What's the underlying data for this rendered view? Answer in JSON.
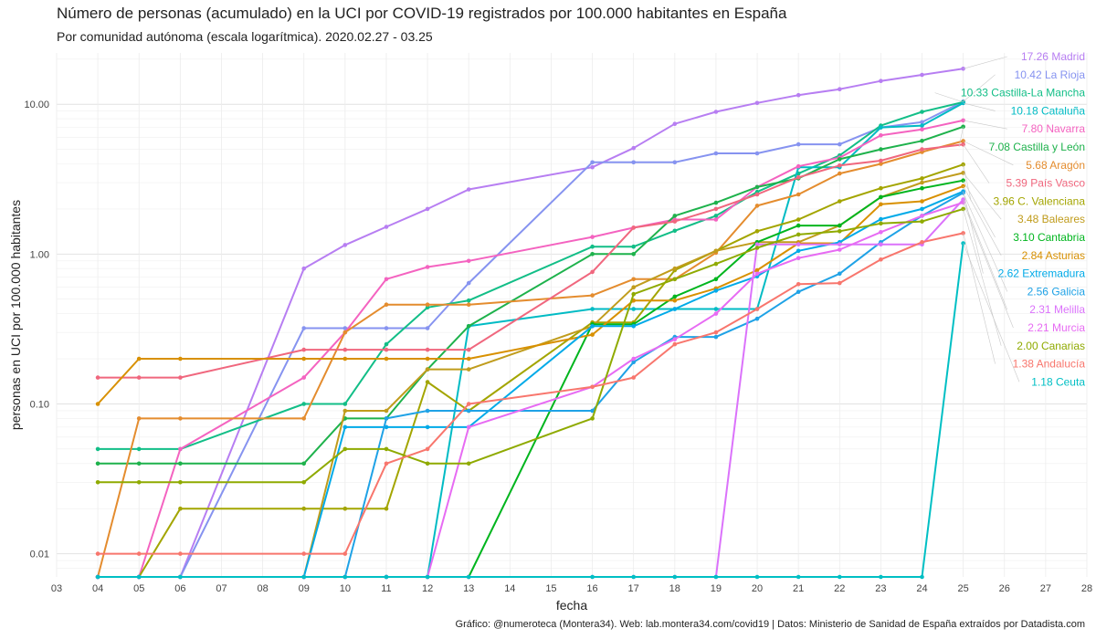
{
  "title": "Número de personas (acumulado) en la UCI por COVID-19 registrados por 100.000 habitantes en España",
  "subtitle": "Por comunidad autónoma (escala logarítmica). 2020.02.27 - 03.25",
  "caption": "Gráfico: @numeroteca (Montera34). Web: lab.montera34.com/covid19 | Datos: Ministerio de Sanidad de España extraídos por Datadista.com",
  "chart_data": {
    "type": "line",
    "title": "Número de personas (acumulado) en la UCI por COVID-19 registrados por 100.000 habitantes en España",
    "subtitle": "Por comunidad autónoma (escala logarítmica). 2020.02.27 - 03.25",
    "xlabel": "fecha",
    "ylabel": "personas en UCI por 100.000 habitantes",
    "y_scale": "log",
    "ylim": [
      0.007,
      22
    ],
    "xlim": [
      3,
      28
    ],
    "grid": true,
    "legend": "none (labels at line ends, right)",
    "x_ticks": [
      "03",
      "04",
      "05",
      "06",
      "07",
      "08",
      "09",
      "10",
      "11",
      "12",
      "13",
      "14",
      "15",
      "16",
      "17",
      "18",
      "19",
      "20",
      "21",
      "22",
      "23",
      "24",
      "25",
      "26",
      "27",
      "28"
    ],
    "y_ticks": [
      {
        "value": 0.01,
        "label": "0.01"
      },
      {
        "value": 0.1,
        "label": "0.10"
      },
      {
        "value": 1,
        "label": "1.00"
      },
      {
        "value": 10,
        "label": "10.00"
      }
    ],
    "x": [
      4,
      5,
      6,
      9,
      10,
      11,
      12,
      13,
      16,
      17,
      18,
      19,
      20,
      21,
      22,
      23,
      24,
      25
    ],
    "series": [
      {
        "name": "Madrid",
        "label": "17.26 Madrid",
        "color": "#B77EF2",
        "values": [
          0,
          0,
          0,
          0.8,
          1.15,
          1.52,
          2.0,
          2.7,
          3.8,
          5.1,
          7.4,
          8.9,
          10.2,
          11.5,
          12.6,
          14.3,
          15.7,
          17.26
        ]
      },
      {
        "name": "La Rioja",
        "label": "10.42 La Rioja",
        "color": "#8693F0",
        "values": [
          0,
          0,
          0,
          0.32,
          0.32,
          0.32,
          0.32,
          0.64,
          4.1,
          4.1,
          4.1,
          4.7,
          4.7,
          5.4,
          5.4,
          7.0,
          7.6,
          10.42
        ]
      },
      {
        "name": "Castilla-La Mancha",
        "label": "10.33 Castilla-La Mancha",
        "color": "#12BE87",
        "values": [
          0.05,
          0.05,
          0.05,
          0.1,
          0.1,
          0.25,
          0.44,
          0.49,
          1.12,
          1.12,
          1.43,
          1.8,
          2.6,
          3.45,
          4.55,
          7.2,
          8.9,
          10.33
        ]
      },
      {
        "name": "Cataluña",
        "label": "10.18 Cataluña",
        "color": "#00BBC4",
        "values": [
          0,
          0,
          0,
          0,
          0,
          0,
          0,
          0.33,
          0.43,
          0.43,
          0.43,
          0.43,
          0.43,
          3.8,
          3.8,
          7.0,
          7.2,
          10.18
        ]
      },
      {
        "name": "Navarra",
        "label": "7.80 Navarra",
        "color": "#F463C0",
        "values": [
          0,
          0,
          0.05,
          0.15,
          0.3,
          0.68,
          0.82,
          0.9,
          1.3,
          1.5,
          1.7,
          1.7,
          2.8,
          3.85,
          4.4,
          6.2,
          6.8,
          7.8
        ]
      },
      {
        "name": "Castilla y León",
        "label": "7.08 Castilla y León",
        "color": "#1EB24C",
        "values": [
          0.04,
          0.04,
          0.04,
          0.04,
          0.08,
          0.08,
          0.17,
          0.33,
          1.0,
          1.0,
          1.8,
          2.2,
          2.8,
          3.2,
          4.3,
          5.0,
          5.7,
          7.08
        ]
      },
      {
        "name": "Aragón",
        "label": "5.68 Aragón",
        "color": "#E48C2E",
        "values": [
          0,
          0.08,
          0.08,
          0.08,
          0.3,
          0.46,
          0.46,
          0.46,
          0.53,
          0.68,
          0.68,
          1.02,
          2.1,
          2.5,
          3.45,
          4.0,
          4.8,
          5.68
        ]
      },
      {
        "name": "País Vasco",
        "label": "5.39 País Vasco",
        "color": "#F0677E",
        "values": [
          0.15,
          0.15,
          0.15,
          0.23,
          0.23,
          0.23,
          0.23,
          0.23,
          0.76,
          1.5,
          1.65,
          2.0,
          2.5,
          3.25,
          3.9,
          4.2,
          5.0,
          5.39
        ]
      },
      {
        "name": "C. Valenciana",
        "label": "3.96 C. Valenciana",
        "color": "#A3A500",
        "values": [
          0,
          0,
          0.02,
          0.02,
          0.02,
          0.02,
          0.14,
          0.09,
          0.35,
          0.35,
          0.78,
          1.05,
          1.42,
          1.7,
          2.25,
          2.75,
          3.2,
          3.96
        ]
      },
      {
        "name": "Baleares",
        "label": "3.48 Baleares",
        "color": "#C09C1C",
        "values": [
          0,
          0,
          0,
          0,
          0.09,
          0.09,
          0.17,
          0.17,
          0.33,
          0.6,
          0.8,
          1.05,
          1.2,
          1.2,
          1.55,
          2.4,
          3.0,
          3.48
        ]
      },
      {
        "name": "Cantabria",
        "label": "3.10 Cantabria",
        "color": "#00B51E",
        "values": [
          0,
          0,
          0,
          0,
          0,
          0,
          0,
          0,
          0.34,
          0.34,
          0.52,
          0.68,
          1.2,
          1.55,
          1.55,
          2.4,
          2.75,
          3.1
        ]
      },
      {
        "name": "Asturias",
        "label": "2.84 Asturias",
        "color": "#D89000",
        "values": [
          0.1,
          0.2,
          0.2,
          0.2,
          0.2,
          0.2,
          0.2,
          0.2,
          0.29,
          0.49,
          0.49,
          0.59,
          0.78,
          1.18,
          1.18,
          2.15,
          2.25,
          2.84
        ]
      },
      {
        "name": "Extremadura",
        "label": "2.62 Extremadura",
        "color": "#00AAE8",
        "values": [
          0,
          0,
          0,
          0,
          0.07,
          0.07,
          0.07,
          0.07,
          0.33,
          0.33,
          0.43,
          0.57,
          0.71,
          1.05,
          1.2,
          1.71,
          2.0,
          2.62
        ]
      },
      {
        "name": "Galicia",
        "label": "2.56 Galicia",
        "color": "#1FA2E6",
        "values": [
          0,
          0,
          0,
          0,
          0,
          0.08,
          0.09,
          0.09,
          0.09,
          0.19,
          0.28,
          0.28,
          0.37,
          0.56,
          0.74,
          1.2,
          1.8,
          2.56
        ]
      },
      {
        "name": "Melilla",
        "label": "2.31 Melilla",
        "color": "#DB72FB",
        "values": [
          0,
          0,
          0,
          0,
          0,
          0,
          0,
          0,
          0,
          0,
          0,
          0,
          1.16,
          1.16,
          1.16,
          1.16,
          1.16,
          2.31
        ]
      },
      {
        "name": "Murcia",
        "label": "2.21 Murcia",
        "color": "#E76BF3",
        "values": [
          0,
          0,
          0,
          0,
          0,
          0,
          0,
          0.07,
          0.13,
          0.2,
          0.27,
          0.4,
          0.74,
          0.94,
          1.07,
          1.4,
          1.8,
          2.21
        ]
      },
      {
        "name": "Canarias",
        "label": "2.00 Canarias",
        "color": "#8FAA00",
        "values": [
          0.03,
          0.03,
          0.03,
          0.03,
          0.05,
          0.05,
          0.04,
          0.04,
          0.08,
          0.54,
          0.68,
          0.86,
          1.1,
          1.35,
          1.42,
          1.6,
          1.65,
          2.0
        ]
      },
      {
        "name": "Andalucía",
        "label": "1.38 Andalucía",
        "color": "#F8766D",
        "values": [
          0.01,
          0.01,
          0.01,
          0.01,
          0.01,
          0.04,
          0.05,
          0.1,
          0.13,
          0.15,
          0.25,
          0.3,
          0.43,
          0.63,
          0.64,
          0.92,
          1.2,
          1.38
        ]
      },
      {
        "name": "Ceuta",
        "label": "1.18 Ceuta",
        "color": "#00BFC4",
        "values": [
          0,
          0,
          0,
          0,
          0,
          0,
          0,
          0,
          0,
          0,
          0,
          0,
          0,
          0,
          0,
          0,
          0,
          1.18
        ]
      }
    ]
  }
}
